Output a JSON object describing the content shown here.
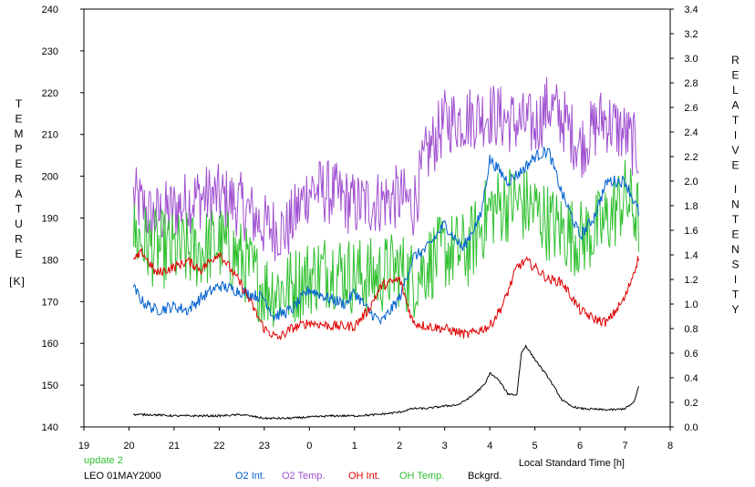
{
  "chart_data": {
    "type": "line",
    "left_axis": {
      "label_letters": [
        "T",
        "E",
        "M",
        "P",
        "E",
        "R",
        "A",
        "T",
        "U",
        "R",
        "E"
      ],
      "unit": "[K]",
      "ticks": [
        "240",
        "230",
        "220",
        "210",
        "200",
        "190",
        "180",
        "170",
        "160",
        "150",
        "140"
      ],
      "ylim": [
        140,
        240
      ]
    },
    "right_axis": {
      "label_letters_1": [
        "R",
        "E",
        "L",
        "A",
        "T",
        "I",
        "V",
        "E"
      ],
      "label_letters_2": [
        "I",
        "N",
        "T",
        "E",
        "N",
        "S",
        "I",
        "T",
        "Y"
      ],
      "ticks": [
        "3.4",
        "3.2",
        "3.0",
        "2.8",
        "2.6",
        "2.4",
        "2.2",
        "2.0",
        "1.8",
        "1.6",
        "1.4",
        "1.2",
        "1.0",
        "0.8",
        "0.6",
        "0.4",
        "0.2",
        "0.0"
      ],
      "ylim": [
        0.0,
        3.4
      ]
    },
    "x_axis": {
      "label": "Local Standard Time [h]",
      "ticks": [
        "19",
        "20",
        "21",
        "22",
        "23",
        "0",
        "1",
        "2",
        "3",
        "4",
        "5",
        "6",
        "7",
        "8"
      ],
      "xlim": [
        19,
        32
      ]
    },
    "annotations": {
      "update": "update 2",
      "station_date": "LEO 01MAY2000"
    },
    "legend": [
      {
        "name": "O2 Int.",
        "color": "#0060d0"
      },
      {
        "name": "O2 Temp.",
        "color": "#a050d0"
      },
      {
        "name": "OH Int.",
        "color": "#e00000"
      },
      {
        "name": "OH Temp.",
        "color": "#30c030"
      },
      {
        "name": "Bckgrd.",
        "color": "#000000"
      }
    ],
    "annotation_color": "#30c030",
    "series": [
      {
        "name": "O2 Temp.",
        "axis": "left",
        "noise": 5,
        "x": [
          20.1,
          20.5,
          21,
          21.5,
          22,
          22.5,
          23,
          23.5,
          24,
          24.5,
          25,
          25.5,
          26,
          26.3,
          26.6,
          27,
          27.5,
          28,
          28.5,
          29,
          29.3,
          29.6,
          30,
          30.5,
          31,
          31.3
        ],
        "y": [
          195,
          190,
          192,
          195,
          195,
          193,
          188,
          187,
          197,
          196,
          193,
          194,
          195,
          193,
          205,
          213,
          214,
          215,
          213,
          212,
          217,
          214,
          207,
          214,
          210,
          206
        ]
      },
      {
        "name": "OH Temp.",
        "axis": "left",
        "noise": 6,
        "x": [
          20.1,
          20.5,
          21,
          21.5,
          22,
          22.5,
          23,
          23.5,
          24,
          24.5,
          25,
          25.5,
          26,
          26.3,
          26.6,
          27,
          27.5,
          28,
          28.5,
          29,
          29.3,
          29.6,
          30,
          30.5,
          31,
          31.3
        ],
        "y": [
          186,
          183,
          182,
          182,
          184,
          180,
          173,
          173,
          176,
          178,
          176,
          176,
          178,
          175,
          179,
          182,
          182,
          192,
          194,
          192,
          189,
          187,
          185,
          188,
          195,
          190
        ]
      },
      {
        "name": "O2 Int.",
        "axis": "right",
        "noise": 0.03,
        "x": [
          20.1,
          20.3,
          20.6,
          21,
          21.3,
          21.6,
          22,
          22.5,
          23,
          23.2,
          23.6,
          24,
          24.4,
          24.8,
          25,
          25.3,
          25.6,
          26,
          26.3,
          26.6,
          27,
          27.4,
          27.8,
          28,
          28.4,
          28.7,
          29,
          29.3,
          29.6,
          30,
          30.3,
          30.6,
          31,
          31.3
        ],
        "y": [
          1.13,
          1.02,
          0.95,
          0.98,
          0.95,
          1.05,
          1.15,
          1.1,
          1.05,
          0.9,
          0.95,
          1.12,
          1.05,
          1.0,
          1.1,
          0.95,
          0.85,
          1.05,
          1.38,
          1.45,
          1.65,
          1.45,
          1.72,
          2.18,
          2.0,
          2.08,
          2.2,
          2.25,
          1.9,
          1.55,
          1.7,
          2.0,
          2.0,
          1.75
        ]
      },
      {
        "name": "OH Int.",
        "axis": "right",
        "noise": 0.025,
        "x": [
          20.1,
          20.3,
          20.6,
          21,
          21.3,
          21.6,
          22,
          22.5,
          23,
          23.3,
          23.6,
          24,
          24.5,
          25,
          25.3,
          25.6,
          26,
          26.3,
          26.6,
          27,
          27.5,
          28,
          28.3,
          28.6,
          28.8,
          29,
          29.3,
          29.6,
          30,
          30.3,
          30.6,
          31,
          31.3
        ],
        "y": [
          1.35,
          1.42,
          1.25,
          1.3,
          1.35,
          1.28,
          1.42,
          1.15,
          0.8,
          0.72,
          0.8,
          0.85,
          0.82,
          0.82,
          0.95,
          1.15,
          1.2,
          0.85,
          0.82,
          0.8,
          0.75,
          0.82,
          1.0,
          1.3,
          1.35,
          1.3,
          1.2,
          1.18,
          0.95,
          0.88,
          0.85,
          1.05,
          1.38
        ]
      },
      {
        "name": "Bckgrd.",
        "axis": "right",
        "noise": 0.005,
        "x": [
          20.1,
          20.5,
          21,
          21.5,
          22,
          22.5,
          23,
          23.5,
          24,
          24.5,
          25,
          25.5,
          26,
          26.3,
          26.6,
          27,
          27.3,
          27.6,
          27.9,
          28,
          28.2,
          28.4,
          28.6,
          28.7,
          28.8,
          29,
          29.3,
          29.6,
          29.8,
          30,
          30.5,
          30.8,
          31,
          31.2,
          31.3
        ],
        "y": [
          0.1,
          0.1,
          0.09,
          0.09,
          0.09,
          0.1,
          0.07,
          0.07,
          0.08,
          0.09,
          0.09,
          0.1,
          0.12,
          0.15,
          0.15,
          0.17,
          0.18,
          0.25,
          0.35,
          0.44,
          0.38,
          0.27,
          0.26,
          0.6,
          0.66,
          0.55,
          0.4,
          0.22,
          0.17,
          0.15,
          0.14,
          0.14,
          0.15,
          0.2,
          0.33
        ]
      }
    ]
  }
}
